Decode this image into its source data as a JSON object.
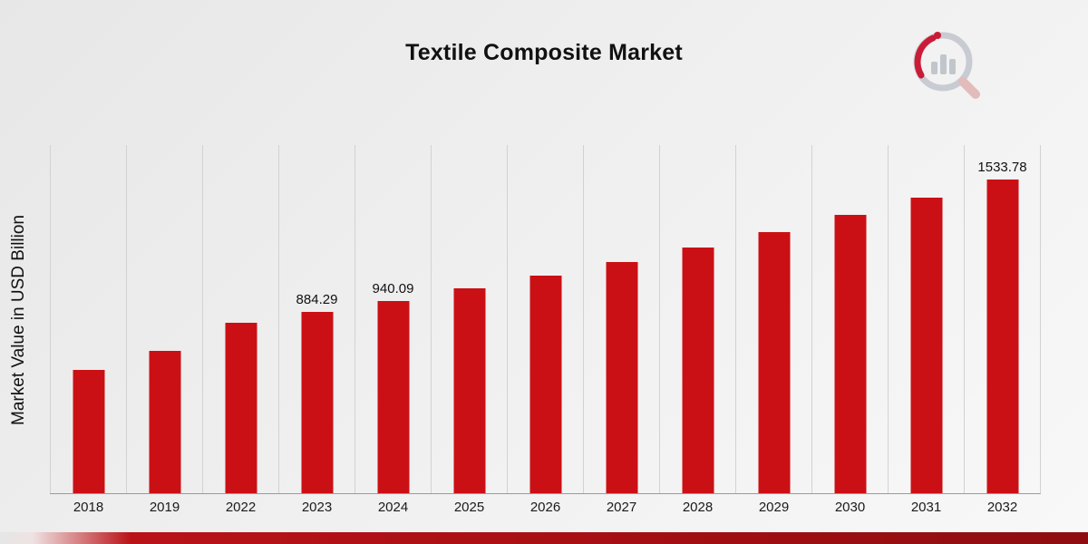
{
  "header": {
    "title": "Textile Composite Market"
  },
  "axes": {
    "y_label": "Market Value in USD Billion"
  },
  "logo": {
    "name": "market-research-logo",
    "accent_color": "#c8102e",
    "gray_color": "#c3c7ce"
  },
  "chart_data": {
    "type": "bar",
    "title": "Textile Composite Market",
    "ylabel": "Market Value in USD Billion",
    "xlabel": "",
    "categories": [
      "2018",
      "2019",
      "2022",
      "2023",
      "2024",
      "2025",
      "2026",
      "2027",
      "2028",
      "2029",
      "2030",
      "2031",
      "2032"
    ],
    "values": [
      603,
      695,
      832,
      884.29,
      940.09,
      999.4,
      1062.5,
      1129.5,
      1200.8,
      1276.6,
      1357.1,
      1442.8,
      1533.78
    ],
    "data_labels": {
      "2023": "884.29",
      "2024": "940.09",
      "2032": "1533.78"
    },
    "ylim": [
      0,
      1700
    ],
    "bar_color": "#cb1015",
    "grid": "vertical",
    "legend": "none"
  }
}
